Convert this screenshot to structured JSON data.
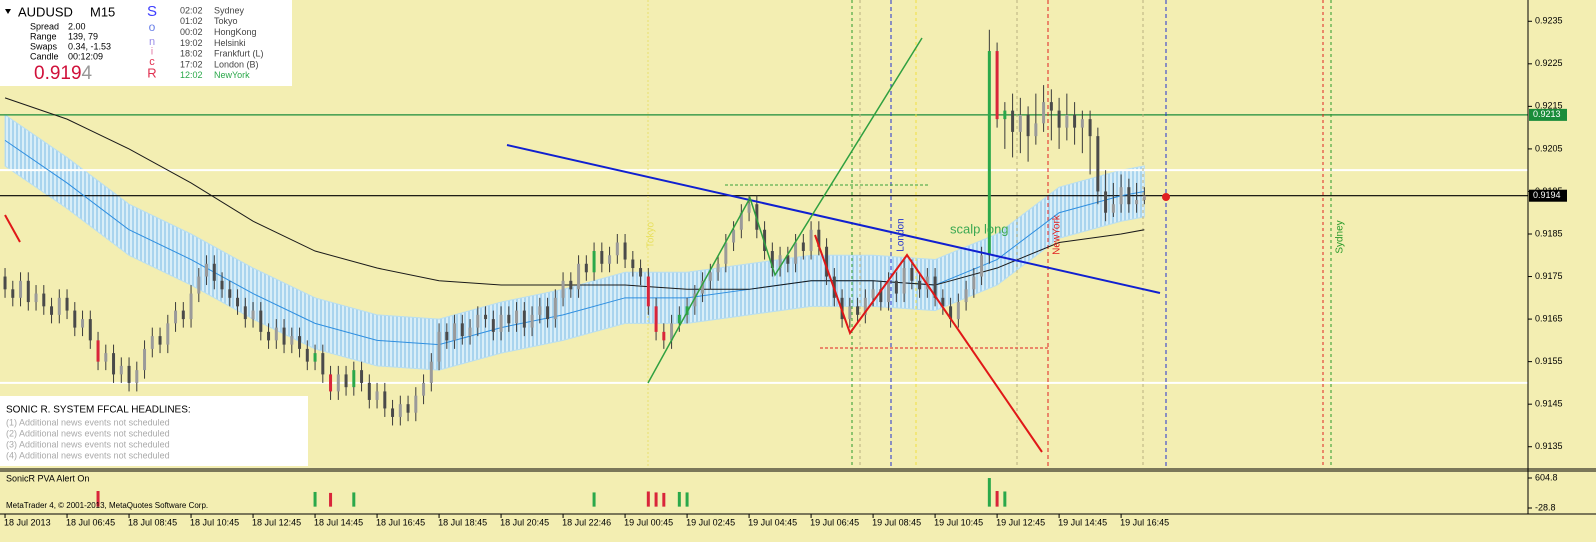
{
  "info_panel": {
    "symbol": "AUDUSD",
    "timeframe": "M15",
    "rows": [
      {
        "label": "Spread",
        "value": "2.00"
      },
      {
        "label": "Range",
        "value": "139, 79"
      },
      {
        "label": "Swaps",
        "value": "0.34, -1.53"
      },
      {
        "label": "Candle",
        "value": "00:12:09"
      }
    ],
    "price_main": "0.919",
    "price_last": "4",
    "sonic": [
      "S",
      "o",
      "n",
      "i",
      "c",
      "R"
    ],
    "sessions": [
      {
        "time": "02:02",
        "city": "Sydney"
      },
      {
        "time": "01:02",
        "city": "Tokyo"
      },
      {
        "time": "00:02",
        "city": "HongKong"
      },
      {
        "time": "19:02",
        "city": "Helsinki"
      },
      {
        "time": "18:02",
        "city": "Frankfurt  (L)"
      },
      {
        "time": "17:02",
        "city": "London  (B)"
      },
      {
        "time": "12:02",
        "city": "NewYork"
      }
    ]
  },
  "headlines": {
    "title": "SONIC R. SYSTEM  FFCAL HEADLINES:",
    "lines": [
      "(1)  Additional news events not scheduled",
      "(2)  Additional news events not scheduled",
      "(3)  Additional news events not scheduled",
      "(4)  Additional news events not scheduled"
    ]
  },
  "annotations": {
    "scalp": "scalp long",
    "london": "London",
    "newyork": "NewYork",
    "sydney": "Sydney",
    "tokyo": "Tokyo"
  },
  "footer": "MetaTrader 4, © 2001-2013, MetaQuotes Software Corp.",
  "chart_data": [
    {
      "type": "candlestick",
      "up_color": "#9a9a9a",
      "down_color": "#4a4a4a",
      "wick_color": "#3a3a3a",
      "climax_up_color": "#2aa84a",
      "climax_down_color": "#d9253a",
      "xlim": [
        -0.65,
        196.5
      ],
      "ylim": [
        0.913,
        0.924
      ],
      "yticks": [
        0.9235,
        0.9225,
        0.9215,
        0.9205,
        0.9195,
        0.9185,
        0.9175,
        0.9165,
        0.9155,
        0.9145,
        0.9135
      ],
      "xticks": [
        {
          "value": 0,
          "label": "18 Jul 2013"
        },
        {
          "value": 8,
          "label": "18 Jul 06:45"
        },
        {
          "value": 16,
          "label": "18 Jul 08:45"
        },
        {
          "value": 24,
          "label": "18 Jul 10:45"
        },
        {
          "value": 32,
          "label": "18 Jul 12:45"
        },
        {
          "value": 40,
          "label": "18 Jul 14:45"
        },
        {
          "value": 48,
          "label": "18 Jul 16:45"
        },
        {
          "value": 56,
          "label": "18 Jul 18:45"
        },
        {
          "value": 64,
          "label": "18 Jul 20:45"
        },
        {
          "value": 72,
          "label": "18 Jul 22:46"
        },
        {
          "value": 80,
          "label": "19 Jul 00:45"
        },
        {
          "value": 88,
          "label": "19 Jul 02:45"
        },
        {
          "value": 96,
          "label": "19 Jul 04:45"
        },
        {
          "value": 104,
          "label": "19 Jul 06:45"
        },
        {
          "value": 112,
          "label": "19 Jul 08:45"
        },
        {
          "value": 120,
          "label": "19 Jul 10:45"
        },
        {
          "value": 128,
          "label": "19 Jul 12:45"
        },
        {
          "value": 136,
          "label": "19 Jul 14:45"
        },
        {
          "value": 144,
          "label": "19 Jul 16:45"
        }
      ],
      "open": [
        0.9175,
        0.9172,
        0.917,
        0.9174,
        0.9169,
        0.9171,
        0.9168,
        0.9166,
        0.917,
        0.9167,
        0.9163,
        0.9165,
        0.916,
        0.9155,
        0.9157,
        0.9152,
        0.9154,
        0.915,
        0.9153,
        0.9158,
        0.9161,
        0.9159,
        0.9164,
        0.9167,
        0.9165,
        0.9171,
        0.9175,
        0.9178,
        0.9174,
        0.9172,
        0.917,
        0.9168,
        0.9165,
        0.9167,
        0.9162,
        0.916,
        0.9163,
        0.9159,
        0.9161,
        0.9158,
        0.9155,
        0.9157,
        0.9152,
        0.9148,
        0.9152,
        0.9149,
        0.9153,
        0.915,
        0.9146,
        0.9148,
        0.9144,
        0.9142,
        0.9145,
        0.9143,
        0.9147,
        0.915,
        0.9155,
        0.9162,
        0.916,
        0.9164,
        0.9161,
        0.9163,
        0.9166,
        0.9165,
        0.9162,
        0.9166,
        0.9164,
        0.9167,
        0.9163,
        0.9166,
        0.9168,
        0.9165,
        0.917,
        0.9174,
        0.9172,
        0.9178,
        0.9176,
        0.9181,
        0.9178,
        0.918,
        0.9183,
        0.9179,
        0.9177,
        0.9175,
        0.9168,
        0.9162,
        0.916,
        0.9164,
        0.9166,
        0.9168,
        0.9171,
        0.9174,
        0.9176,
        0.9178,
        0.9183,
        0.9186,
        0.919,
        0.9192,
        0.9186,
        0.9181,
        0.9177,
        0.918,
        0.9178,
        0.9183,
        0.9181,
        0.9186,
        0.9182,
        0.9175,
        0.917,
        0.9165,
        0.9168,
        0.9166,
        0.917,
        0.9172,
        0.9169,
        0.9174,
        0.9171,
        0.9177,
        0.9174,
        0.9172,
        0.9175,
        0.917,
        0.9168,
        0.9165,
        0.9169,
        0.9172,
        0.9175,
        0.918,
        0.9228,
        0.9212,
        0.9214,
        0.9209,
        0.9213,
        0.9208,
        0.9211,
        0.9216,
        0.9214,
        0.921,
        0.9213,
        0.921,
        0.9212,
        0.9208,
        0.9195,
        0.919,
        0.9192,
        0.9196,
        0.9192,
        0.9193
      ],
      "high": [
        0.9177,
        0.9174,
        0.9176,
        0.9176,
        0.9173,
        0.9173,
        0.917,
        0.9172,
        0.9172,
        0.9169,
        0.9167,
        0.9167,
        0.9162,
        0.9159,
        0.9159,
        0.9156,
        0.9156,
        0.9155,
        0.916,
        0.9163,
        0.9163,
        0.9166,
        0.9169,
        0.9169,
        0.9173,
        0.9177,
        0.918,
        0.918,
        0.9176,
        0.9174,
        0.9172,
        0.917,
        0.9169,
        0.9169,
        0.9164,
        0.9165,
        0.9165,
        0.9163,
        0.9163,
        0.916,
        0.9159,
        0.9159,
        0.9154,
        0.9154,
        0.9154,
        0.9155,
        0.9155,
        0.9152,
        0.915,
        0.915,
        0.9146,
        0.9147,
        0.9147,
        0.9149,
        0.9152,
        0.9157,
        0.9164,
        0.9164,
        0.9166,
        0.9166,
        0.9165,
        0.9168,
        0.9168,
        0.9167,
        0.9168,
        0.9168,
        0.9169,
        0.9169,
        0.9168,
        0.917,
        0.917,
        0.9172,
        0.9176,
        0.9176,
        0.918,
        0.918,
        0.9183,
        0.9183,
        0.9182,
        0.9185,
        0.9185,
        0.9181,
        0.9179,
        0.9177,
        0.917,
        0.9164,
        0.9166,
        0.9168,
        0.917,
        0.9173,
        0.9176,
        0.9178,
        0.918,
        0.9185,
        0.9188,
        0.9192,
        0.9194,
        0.9194,
        0.9188,
        0.9183,
        0.9182,
        0.9182,
        0.9185,
        0.9185,
        0.9188,
        0.9188,
        0.9184,
        0.9177,
        0.9172,
        0.917,
        0.917,
        0.9172,
        0.9174,
        0.9174,
        0.9176,
        0.9176,
        0.9179,
        0.9179,
        0.9176,
        0.9177,
        0.9177,
        0.9172,
        0.917,
        0.9171,
        0.9174,
        0.9177,
        0.9182,
        0.9233,
        0.923,
        0.9216,
        0.9218,
        0.9217,
        0.9215,
        0.9218,
        0.922,
        0.9219,
        0.9217,
        0.9218,
        0.9216,
        0.9214,
        0.9214,
        0.921,
        0.92,
        0.9197,
        0.9199,
        0.9198,
        0.9197,
        0.9196
      ],
      "low": [
        0.917,
        0.9168,
        0.9168,
        0.9167,
        0.9167,
        0.9166,
        0.9164,
        0.9164,
        0.9165,
        0.9161,
        0.9161,
        0.9158,
        0.9153,
        0.9153,
        0.915,
        0.915,
        0.9148,
        0.9148,
        0.9151,
        0.9156,
        0.9157,
        0.9157,
        0.9162,
        0.9163,
        0.9163,
        0.9169,
        0.9173,
        0.9172,
        0.917,
        0.9168,
        0.9166,
        0.9163,
        0.9163,
        0.916,
        0.9158,
        0.9158,
        0.9157,
        0.9157,
        0.9156,
        0.9153,
        0.9153,
        0.915,
        0.9146,
        0.9146,
        0.9147,
        0.9147,
        0.9148,
        0.9144,
        0.9144,
        0.9142,
        0.914,
        0.914,
        0.9141,
        0.9141,
        0.9145,
        0.9148,
        0.9153,
        0.9158,
        0.9158,
        0.9159,
        0.9159,
        0.9161,
        0.9163,
        0.916,
        0.916,
        0.9162,
        0.9162,
        0.9161,
        0.9161,
        0.9164,
        0.9163,
        0.9163,
        0.9168,
        0.917,
        0.917,
        0.9174,
        0.9174,
        0.9176,
        0.9176,
        0.9178,
        0.9177,
        0.9175,
        0.9173,
        0.9166,
        0.916,
        0.9158,
        0.9158,
        0.9162,
        0.9164,
        0.9166,
        0.9169,
        0.9172,
        0.9174,
        0.9176,
        0.9181,
        0.9184,
        0.9188,
        0.9184,
        0.9179,
        0.9175,
        0.9175,
        0.9176,
        0.9176,
        0.9179,
        0.9179,
        0.918,
        0.9173,
        0.9168,
        0.9163,
        0.9163,
        0.9164,
        0.9164,
        0.9168,
        0.9167,
        0.9167,
        0.9169,
        0.9169,
        0.9172,
        0.917,
        0.917,
        0.9168,
        0.9166,
        0.9163,
        0.9163,
        0.9167,
        0.917,
        0.9173,
        0.9178,
        0.921,
        0.9205,
        0.9203,
        0.9204,
        0.9202,
        0.9206,
        0.9209,
        0.9207,
        0.9205,
        0.9207,
        0.9206,
        0.9204,
        0.9199,
        0.9192,
        0.9188,
        0.9189,
        0.919,
        0.919,
        0.919,
        0.9192
      ],
      "close": [
        0.9172,
        0.917,
        0.9174,
        0.9169,
        0.9171,
        0.9168,
        0.9166,
        0.917,
        0.9167,
        0.9163,
        0.9165,
        0.916,
        0.9155,
        0.9157,
        0.9152,
        0.9154,
        0.915,
        0.9153,
        0.9158,
        0.9161,
        0.9159,
        0.9164,
        0.9167,
        0.9165,
        0.9171,
        0.9175,
        0.9178,
        0.9174,
        0.9172,
        0.917,
        0.9168,
        0.9165,
        0.9167,
        0.9162,
        0.916,
        0.9163,
        0.9159,
        0.9161,
        0.9158,
        0.9155,
        0.9157,
        0.9152,
        0.9148,
        0.9152,
        0.9149,
        0.9153,
        0.915,
        0.9146,
        0.9148,
        0.9144,
        0.9142,
        0.9145,
        0.9143,
        0.9147,
        0.915,
        0.9155,
        0.9162,
        0.916,
        0.9164,
        0.9161,
        0.9163,
        0.9166,
        0.9165,
        0.9162,
        0.9166,
        0.9164,
        0.9167,
        0.9163,
        0.9166,
        0.9168,
        0.9165,
        0.917,
        0.9174,
        0.9172,
        0.9178,
        0.9176,
        0.9181,
        0.9178,
        0.918,
        0.9183,
        0.9179,
        0.9177,
        0.9175,
        0.9168,
        0.9162,
        0.916,
        0.9164,
        0.9166,
        0.9168,
        0.9171,
        0.9174,
        0.9176,
        0.9178,
        0.9183,
        0.9186,
        0.919,
        0.9192,
        0.9186,
        0.9181,
        0.9177,
        0.918,
        0.9178,
        0.9183,
        0.9181,
        0.9186,
        0.9182,
        0.9175,
        0.917,
        0.9165,
        0.9168,
        0.9166,
        0.917,
        0.9172,
        0.9169,
        0.9174,
        0.9171,
        0.9177,
        0.9174,
        0.9172,
        0.9175,
        0.917,
        0.9168,
        0.9165,
        0.9169,
        0.9172,
        0.9175,
        0.918,
        0.9228,
        0.9212,
        0.9214,
        0.9209,
        0.9213,
        0.9208,
        0.9211,
        0.9216,
        0.9214,
        0.921,
        0.9213,
        0.921,
        0.9212,
        0.9208,
        0.9195,
        0.919,
        0.9192,
        0.9196,
        0.9192,
        0.9193,
        0.9194
      ],
      "bands": [
        {
          "color": "#b9def0",
          "x": [
            0,
            8,
            16,
            24,
            32,
            40,
            48,
            56,
            64,
            72,
            80,
            88,
            96,
            104,
            112,
            120,
            128,
            136,
            144,
            147
          ],
          "upper": [
            0.9213,
            0.9203,
            0.9192,
            0.9185,
            0.9177,
            0.917,
            0.9166,
            0.9165,
            0.9169,
            0.9172,
            0.9176,
            0.9176,
            0.9178,
            0.918,
            0.918,
            0.9179,
            0.9185,
            0.9196,
            0.92,
            0.9201
          ],
          "lower": [
            0.9201,
            0.9191,
            0.918,
            0.9173,
            0.9165,
            0.9158,
            0.9154,
            0.9153,
            0.9157,
            0.916,
            0.9164,
            0.9164,
            0.9166,
            0.9168,
            0.9168,
            0.9167,
            0.9173,
            0.9184,
            0.9188,
            0.9189
          ]
        }
      ],
      "series": [
        {
          "color": "#2f8fe0",
          "x": [
            0,
            8,
            16,
            24,
            32,
            40,
            48,
            56,
            64,
            72,
            80,
            88,
            96,
            104,
            112,
            120,
            128,
            136,
            144,
            147
          ],
          "values": [
            0.9207,
            0.9197,
            0.9186,
            0.9179,
            0.9171,
            0.9164,
            0.916,
            0.9159,
            0.9163,
            0.9166,
            0.917,
            0.917,
            0.9172,
            0.9174,
            0.9174,
            0.9173,
            0.9179,
            0.919,
            0.9194,
            0.9195
          ]
        },
        {
          "color": "#1a1a1a",
          "x": [
            0,
            8,
            16,
            24,
            32,
            40,
            48,
            56,
            64,
            72,
            80,
            88,
            96,
            104,
            112,
            120,
            128,
            136,
            144,
            147
          ],
          "values": [
            0.9217,
            0.9212,
            0.9205,
            0.9197,
            0.9188,
            0.9181,
            0.9177,
            0.9174,
            0.9173,
            0.9173,
            0.9173,
            0.9172,
            0.9172,
            0.9174,
            0.9174,
            0.9173,
            0.9177,
            0.9183,
            0.9185,
            0.9186
          ]
        }
      ],
      "hlines": [
        {
          "value": 0.92,
          "color": "#ffffff"
        },
        {
          "value": 0.915,
          "color": "#ffffff"
        },
        {
          "value": 0.9213,
          "color": "#1a8c3a",
          "tag": true
        },
        {
          "value": 0.9194,
          "color": "#000000",
          "tag": true
        }
      ]
    },
    {
      "type": "bar",
      "title": "SonicR PVA   Alert On",
      "color": "#8c8c8c",
      "climax": 280,
      "ylim": [
        -28.8,
        604.8
      ],
      "yticks": [
        604.8,
        -28.8
      ],
      "values": [
        150,
        120,
        180,
        90,
        110,
        140,
        100,
        130,
        160,
        120,
        140,
        170,
        330,
        150,
        120,
        180,
        200,
        140,
        110,
        130,
        150,
        120,
        140,
        190,
        160,
        170,
        230,
        150,
        120,
        110,
        130,
        100,
        160,
        120,
        140,
        110,
        150,
        120,
        180,
        200,
        310,
        140,
        290,
        120,
        150,
        300,
        130,
        160,
        110,
        140,
        150,
        130,
        120,
        170,
        200,
        180,
        250,
        140,
        120,
        110,
        130,
        100,
        120,
        140,
        150,
        110,
        130,
        120,
        140,
        160,
        130,
        120,
        160,
        150,
        180,
        120,
        300,
        150,
        130,
        140,
        150,
        160,
        140,
        320,
        300,
        290,
        180,
        310,
        300,
        150,
        200,
        170,
        160,
        140,
        180,
        160,
        200,
        150,
        140,
        170,
        160,
        140,
        150,
        130,
        170,
        150,
        180,
        140,
        160,
        120,
        130,
        110,
        140,
        120,
        150,
        130,
        160,
        140,
        120,
        110,
        130,
        150,
        120,
        140,
        160,
        180,
        220,
        604,
        330,
        320,
        180,
        160,
        170,
        150,
        200,
        180,
        160,
        150,
        170,
        140,
        180,
        200,
        150,
        140,
        130,
        120,
        110,
        100
      ]
    }
  ]
}
